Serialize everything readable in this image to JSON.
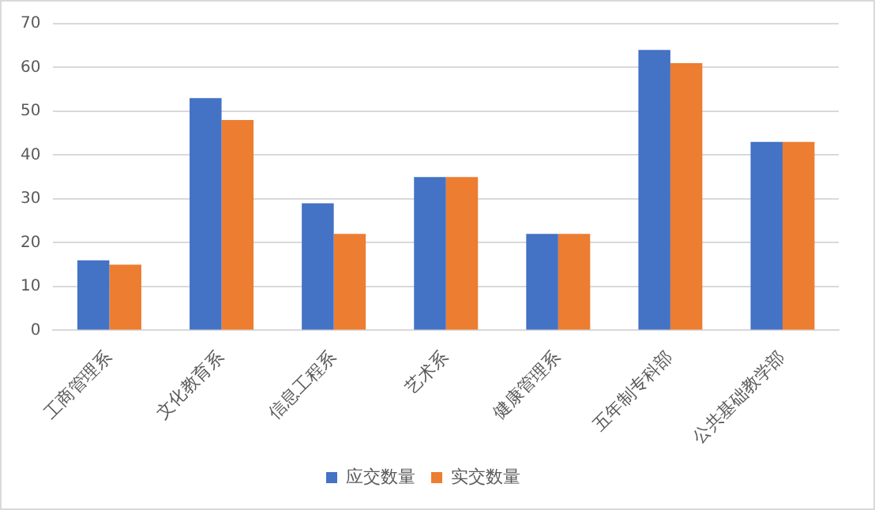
{
  "chart_data": {
    "type": "bar",
    "categories": [
      "工商管理系",
      "文化教育系",
      "信息工程系",
      "艺术系",
      "健康管理系",
      "五年制专科部",
      "公共基础教学部"
    ],
    "series": [
      {
        "name": "应交数量",
        "color": "#4472c4",
        "values": [
          16,
          53,
          29,
          35,
          22,
          64,
          43
        ]
      },
      {
        "name": "实交数量",
        "color": "#ed7d31",
        "values": [
          15,
          48,
          22,
          35,
          22,
          61,
          43
        ]
      }
    ],
    "ylim": [
      0,
      70
    ],
    "yticks": [
      0,
      10,
      20,
      30,
      40,
      50,
      60,
      70
    ],
    "grid": "y",
    "legend": "bottom"
  }
}
